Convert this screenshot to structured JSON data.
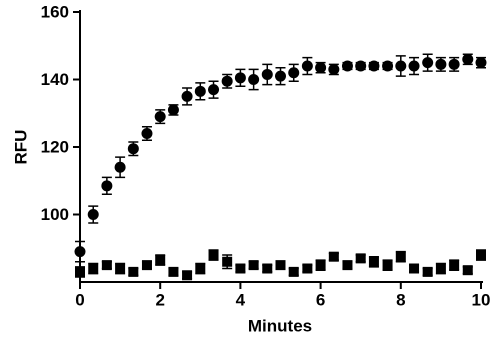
{
  "chart_data": {
    "type": "scatter",
    "x_label": "Minutes",
    "y_label": "RFU",
    "x": [
      0,
      0.33,
      0.67,
      1,
      1.33,
      1.67,
      2,
      2.33,
      2.67,
      3,
      3.33,
      3.67,
      4,
      4.33,
      4.67,
      5,
      5.33,
      5.67,
      6,
      6.33,
      6.67,
      7,
      7.33,
      7.67,
      8,
      8.33,
      8.67,
      9,
      9.33,
      9.67,
      10
    ],
    "series": [
      {
        "color": "#000000",
        "marker": "circle",
        "values": [
          89,
          100,
          108.5,
          114,
          119.5,
          124,
          129,
          131,
          135,
          136.5,
          137,
          139.5,
          140.5,
          140,
          141.5,
          141,
          142,
          144,
          143.5,
          143,
          144,
          144,
          144,
          144,
          144,
          144,
          145,
          144.5,
          144.5,
          146,
          145
        ],
        "errors": [
          3,
          2.5,
          2.5,
          3,
          2,
          2,
          2,
          1.5,
          2.5,
          2.5,
          2.5,
          2,
          2.5,
          3,
          3,
          2.5,
          2.5,
          2.5,
          1.5,
          1.5,
          1,
          1,
          1,
          1,
          3,
          2.5,
          2.5,
          2,
          2,
          1.5,
          1.5
        ]
      },
      {
        "color": "#000000",
        "marker": "square",
        "values": [
          83,
          84,
          85,
          84,
          83,
          85,
          86.5,
          83,
          82,
          84,
          88,
          86,
          84,
          85,
          84,
          85,
          83,
          84,
          85,
          87.5,
          85,
          87,
          86,
          85,
          87.5,
          84,
          83,
          84,
          85,
          83.5,
          88
        ],
        "errors": [
          1.5,
          1.5,
          1,
          1.5,
          1,
          1,
          1.5,
          1,
          1,
          1.5,
          1.5,
          2,
          1,
          1,
          1,
          1,
          1,
          1,
          1.5,
          1,
          1,
          1,
          1.5,
          1.5,
          1.5,
          1,
          1,
          1.5,
          1.5,
          1,
          1.5
        ]
      }
    ],
    "xlim": [
      0,
      10
    ],
    "xticks": [
      0,
      2,
      4,
      6,
      8,
      10
    ],
    "ylim": [
      80,
      160
    ],
    "yticks": [
      100,
      120,
      140,
      160
    ]
  }
}
